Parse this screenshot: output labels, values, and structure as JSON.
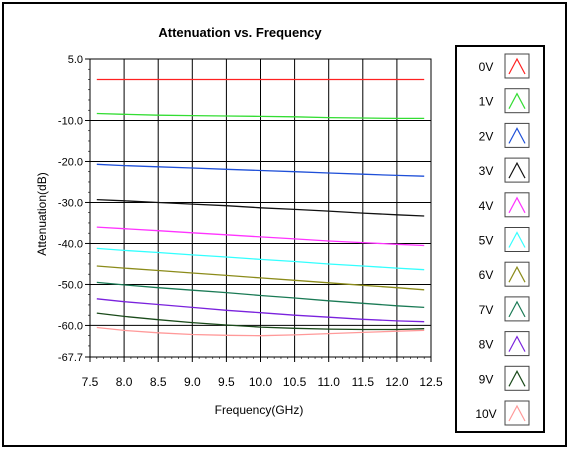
{
  "chart_data": {
    "type": "line",
    "title": "Attenuation vs. Frequency",
    "xlabel": "Frequency(GHz)",
    "ylabel": "Attenuation(dB)",
    "xlim": [
      7.5,
      12.5
    ],
    "ylim": [
      -67.7,
      5.0
    ],
    "xticks": [
      "7.5",
      "8.0",
      "8.5",
      "9.0",
      "9.5",
      "10.0",
      "10.5",
      "11.0",
      "11.5",
      "12.0",
      "12.5"
    ],
    "yticks": [
      "5.0",
      "-10.0",
      "-20.0",
      "-30.0",
      "-40.0",
      "-50.0",
      "-60.0",
      "-67.7"
    ],
    "grid": true,
    "legend_position": "right",
    "x": [
      7.6,
      8.0,
      8.5,
      9.0,
      9.5,
      10.0,
      10.5,
      11.0,
      11.5,
      12.0,
      12.4
    ],
    "series": [
      {
        "name": "0V",
        "color": "#ff2020",
        "values": [
          0.0,
          0.0,
          0.0,
          0.0,
          0.0,
          0.0,
          0.0,
          0.0,
          0.0,
          0.0,
          0.0
        ]
      },
      {
        "name": "1V",
        "color": "#33dd33",
        "values": [
          -8.3,
          -8.5,
          -8.7,
          -8.8,
          -8.9,
          -9.0,
          -9.1,
          -9.3,
          -9.4,
          -9.5,
          -9.5
        ]
      },
      {
        "name": "2V",
        "color": "#1e4fd8",
        "values": [
          -20.7,
          -21.0,
          -21.3,
          -21.6,
          -21.9,
          -22.2,
          -22.5,
          -22.8,
          -23.1,
          -23.4,
          -23.6
        ]
      },
      {
        "name": "3V",
        "color": "#111111",
        "values": [
          -29.3,
          -29.6,
          -30.0,
          -30.4,
          -30.8,
          -31.3,
          -31.7,
          -32.1,
          -32.6,
          -33.0,
          -33.3
        ]
      },
      {
        "name": "4V",
        "color": "#ff33ff",
        "values": [
          -36.0,
          -36.4,
          -36.9,
          -37.4,
          -37.9,
          -38.4,
          -38.9,
          -39.4,
          -39.8,
          -40.2,
          -40.5
        ]
      },
      {
        "name": "5V",
        "color": "#33ffff",
        "values": [
          -41.2,
          -41.7,
          -42.2,
          -42.8,
          -43.3,
          -43.9,
          -44.4,
          -45.0,
          -45.5,
          -46.0,
          -46.4
        ]
      },
      {
        "name": "6V",
        "color": "#8b8b1a",
        "values": [
          -45.5,
          -46.0,
          -46.6,
          -47.2,
          -47.8,
          -48.4,
          -49.0,
          -49.6,
          -50.2,
          -50.8,
          -51.3
        ]
      },
      {
        "name": "7V",
        "color": "#1a7a55",
        "values": [
          -49.5,
          -50.1,
          -50.8,
          -51.4,
          -52.0,
          -52.7,
          -53.3,
          -54.0,
          -54.6,
          -55.2,
          -55.6
        ]
      },
      {
        "name": "8V",
        "color": "#7a22dd",
        "values": [
          -53.5,
          -54.2,
          -54.9,
          -55.6,
          -56.3,
          -56.9,
          -57.5,
          -58.0,
          -58.5,
          -58.9,
          -59.1
        ]
      },
      {
        "name": "9V",
        "color": "#1a4a1a",
        "values": [
          -57.0,
          -57.8,
          -58.6,
          -59.3,
          -59.9,
          -60.4,
          -60.7,
          -60.9,
          -61.0,
          -61.0,
          -60.8
        ]
      },
      {
        "name": "10V",
        "color": "#ff9999",
        "values": [
          -60.5,
          -61.2,
          -61.8,
          -62.2,
          -62.4,
          -62.5,
          -62.3,
          -62.0,
          -61.7,
          -61.4,
          -61.2
        ]
      }
    ]
  }
}
